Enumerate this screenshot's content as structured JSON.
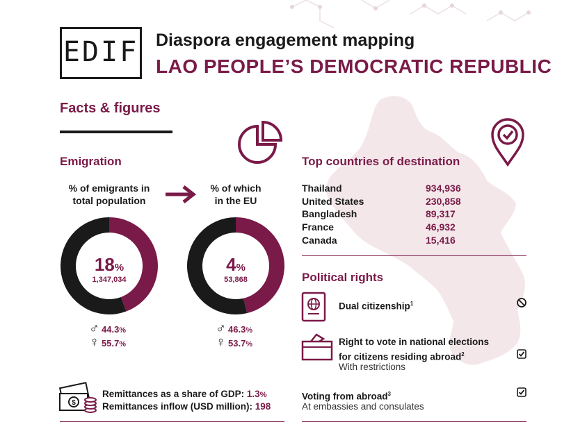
{
  "logo": {
    "text": "EDIF"
  },
  "header": {
    "title": "Diaspora engagement mapping",
    "country": "LAO PEOPLE’S DEMOCRATIC REPUBLIC"
  },
  "facts_heading": "Facts & figures",
  "emigration": {
    "heading": "Emigration",
    "donut_total": {
      "title_line1": "% of emigrants in",
      "title_line2": "total population",
      "percent": "18",
      "percent_sign": "%",
      "count": "1,347,034",
      "male": "44.3",
      "female": "55.7",
      "unit": "%"
    },
    "donut_eu": {
      "title_line1": "% of which",
      "title_line2": "in the EU",
      "percent": "4",
      "percent_sign": "%",
      "count": "53,868",
      "male": "46.3",
      "female": "53.7",
      "unit": "%"
    }
  },
  "top_destinations": {
    "heading": "Top countries of destination",
    "rows": [
      {
        "country": "Thailand",
        "value": "934,936"
      },
      {
        "country": "United States",
        "value": "230,858"
      },
      {
        "country": "Bangladesh",
        "value": "89,317"
      },
      {
        "country": "France",
        "value": "46,932"
      },
      {
        "country": "Canada",
        "value": "15,416"
      }
    ]
  },
  "political_rights": {
    "heading": "Political rights",
    "dual": {
      "label": "Dual citizenship",
      "sup": "1"
    },
    "vote": {
      "line1": "Right to vote in national elections",
      "line2": "for citizens residing abroad",
      "sup": "2",
      "sub": "With restrictions"
    },
    "voting_abroad": {
      "label": "Voting from abroad",
      "sup": "3",
      "sub": "At embassies and consulates"
    }
  },
  "remittances": {
    "gdp_label": "Remittances as a share of GDP:",
    "gdp_value": "1.3",
    "gdp_unit": "%",
    "inflow_label": "Remittances inflow (USD million):",
    "inflow_value": "198"
  },
  "chart_data": [
    {
      "type": "pie",
      "title": "% of emigrants in total population",
      "categories": [
        "Male",
        "Female"
      ],
      "values": [
        44.3,
        55.7
      ],
      "colors": [
        "#7a1a48",
        "#1a1a1a"
      ]
    },
    {
      "type": "pie",
      "title": "% of which in the EU",
      "categories": [
        "Male",
        "Female"
      ],
      "values": [
        46.3,
        53.7
      ],
      "colors": [
        "#7a1a48",
        "#1a1a1a"
      ]
    }
  ],
  "colors": {
    "accent": "#7a1a48",
    "dark": "#1a1a1a",
    "map": "#f3e7ea"
  }
}
